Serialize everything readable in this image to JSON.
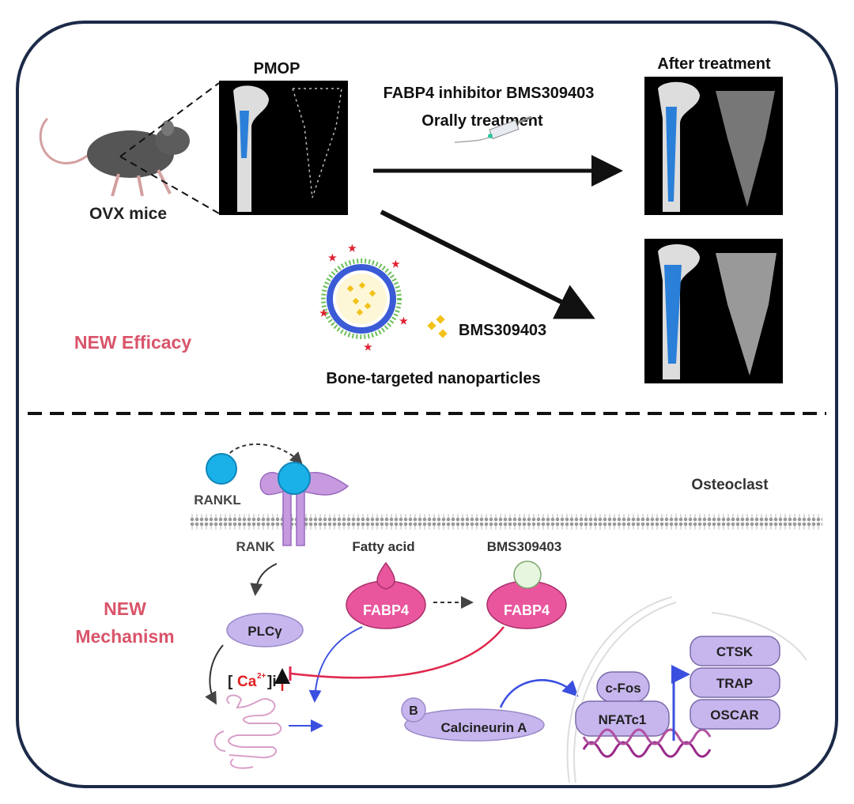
{
  "top": {
    "mouse_label": "OVX mice",
    "pmop_title": "PMOP",
    "treatment_line1": "FABP4 inhibitor BMS309403",
    "treatment_line2": "Orally treatment",
    "after_title": "After treatment",
    "drug_label": "BMS309403",
    "nanoparticle_label": "Bone-targeted nanoparticles",
    "section_label": "NEW Efficacy"
  },
  "bottom": {
    "section_label_line1": "NEW",
    "section_label_line2": "Mechanism",
    "cell_label": "Osteoclast",
    "rankl": "RANKL",
    "rank": "RANK",
    "fatty_acid": "Fatty acid",
    "inhibitor": "BMS309403",
    "fabp4_a": "FABP4",
    "fabp4_b": "FABP4",
    "plc": "PLCγ",
    "ca_open": "[",
    "ca_ion": "Ca",
    "ca_charge": "2+",
    "ca_close": "]i",
    "calcineurin_b": "B",
    "calcineurin_a": "Calcineurin A",
    "cfos": "c-Fos",
    "nfatc1": "NFATc1",
    "genes": [
      "CTSK",
      "TRAP",
      "OSCAR"
    ]
  },
  "colors": {
    "frame": "#1c2a48",
    "accent_red": "#d9546a",
    "purple": "#c7b6ee",
    "pink": "#e9569e",
    "blue_arrow": "#3a4fe0",
    "inhibit_red": "#e0284e",
    "receptor": "#c79ae0",
    "ball": "#1ab0e8"
  }
}
